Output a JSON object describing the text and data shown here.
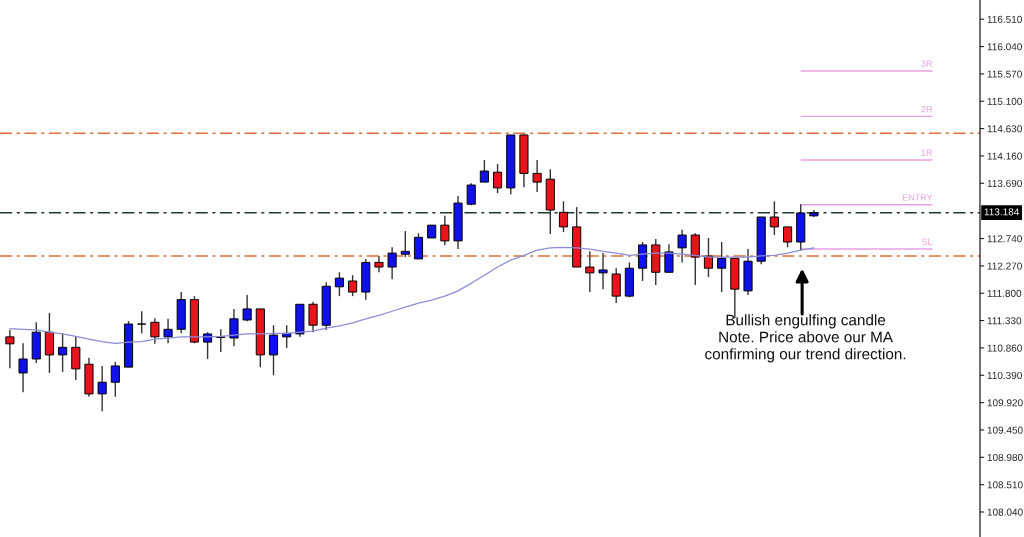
{
  "chart_data": {
    "type": "candlestick",
    "categories": [
      null,
      null,
      null,
      null,
      null,
      null,
      null,
      null,
      null,
      null,
      null,
      null,
      null,
      null,
      null,
      null,
      null,
      null,
      null,
      null,
      null,
      null,
      null,
      null,
      null,
      null,
      null,
      null,
      null,
      null,
      null,
      null,
      null,
      null,
      null,
      null,
      null,
      null,
      null,
      null,
      null,
      null,
      null,
      null,
      null,
      null,
      null,
      null,
      null,
      null,
      null,
      null,
      null,
      null,
      null,
      null,
      null,
      null,
      null,
      null,
      null,
      null
    ],
    "ohlc": [
      [
        111.05,
        111.17,
        110.51,
        110.93
      ],
      [
        110.43,
        110.94,
        110.1,
        110.67
      ],
      [
        110.67,
        111.3,
        110.6,
        111.13
      ],
      [
        111.13,
        111.46,
        110.43,
        110.74
      ],
      [
        110.74,
        111.11,
        110.45,
        110.87
      ],
      [
        110.87,
        111.05,
        110.31,
        110.5
      ],
      [
        110.58,
        110.69,
        110.02,
        110.07
      ],
      [
        110.07,
        110.55,
        109.77,
        110.27
      ],
      [
        110.27,
        110.62,
        110.02,
        110.55
      ],
      [
        110.53,
        111.32,
        110.53,
        111.27
      ],
      [
        111.27,
        111.49,
        111.11,
        111.27
      ],
      [
        111.3,
        111.37,
        110.93,
        111.05
      ],
      [
        111.05,
        111.36,
        110.94,
        111.18
      ],
      [
        111.18,
        111.82,
        111.11,
        111.69
      ],
      [
        111.69,
        111.75,
        110.94,
        110.96
      ],
      [
        110.96,
        111.13,
        110.67,
        111.1
      ],
      [
        111.05,
        111.18,
        110.79,
        111.04
      ],
      [
        111.03,
        111.53,
        110.89,
        111.36
      ],
      [
        111.34,
        111.77,
        111.32,
        111.53
      ],
      [
        111.53,
        111.53,
        110.53,
        110.74
      ],
      [
        110.74,
        111.25,
        110.39,
        111.08
      ],
      [
        111.05,
        111.25,
        110.86,
        111.11
      ],
      [
        111.1,
        111.61,
        111.05,
        111.61
      ],
      [
        111.61,
        111.65,
        111.13,
        111.25
      ],
      [
        111.25,
        111.99,
        111.17,
        111.92
      ],
      [
        111.91,
        112.16,
        111.75,
        112.06
      ],
      [
        112.01,
        112.11,
        111.75,
        111.82
      ],
      [
        111.82,
        112.39,
        111.69,
        112.33
      ],
      [
        112.33,
        112.44,
        112.16,
        112.25
      ],
      [
        112.25,
        112.59,
        112.04,
        112.49
      ],
      [
        112.47,
        112.87,
        112.42,
        112.52
      ],
      [
        112.39,
        112.83,
        112.39,
        112.76
      ],
      [
        112.75,
        112.97,
        112.75,
        112.97
      ],
      [
        112.97,
        113.13,
        112.63,
        112.7
      ],
      [
        112.7,
        113.47,
        112.56,
        113.35
      ],
      [
        113.33,
        113.69,
        113.31,
        113.66
      ],
      [
        113.71,
        114.09,
        113.71,
        113.9
      ],
      [
        113.88,
        114.02,
        113.52,
        113.61
      ],
      [
        113.61,
        114.52,
        113.5,
        114.52
      ],
      [
        114.52,
        114.53,
        113.62,
        113.86
      ],
      [
        113.86,
        114.09,
        113.54,
        113.71
      ],
      [
        113.76,
        113.93,
        112.82,
        113.23
      ],
      [
        113.19,
        113.38,
        112.85,
        112.94
      ],
      [
        112.94,
        113.28,
        112.25,
        112.25
      ],
      [
        112.25,
        112.52,
        111.82,
        112.15
      ],
      [
        112.15,
        112.49,
        111.87,
        112.2
      ],
      [
        112.13,
        112.23,
        111.63,
        111.75
      ],
      [
        111.75,
        112.33,
        111.73,
        112.23
      ],
      [
        112.23,
        112.68,
        112.01,
        112.63
      ],
      [
        112.63,
        112.73,
        111.94,
        112.16
      ],
      [
        112.16,
        112.64,
        112.15,
        112.51
      ],
      [
        112.58,
        112.89,
        112.33,
        112.8
      ],
      [
        112.8,
        112.83,
        111.94,
        112.42
      ],
      [
        112.44,
        112.75,
        112.08,
        112.23
      ],
      [
        112.23,
        112.68,
        111.82,
        112.4
      ],
      [
        112.4,
        112.4,
        111.37,
        111.87
      ],
      [
        111.84,
        112.56,
        111.77,
        112.35
      ],
      [
        112.35,
        113.11,
        112.3,
        113.11
      ],
      [
        113.11,
        113.38,
        112.8,
        112.94
      ],
      [
        112.94,
        112.94,
        112.59,
        112.68
      ],
      [
        112.68,
        113.33,
        112.54,
        113.18
      ],
      [
        113.13,
        113.23,
        113.11,
        113.18
      ]
    ],
    "colors": [
      "#e8141c",
      "#1010e8",
      "#1010e8",
      "#e8141c",
      "#1010e8",
      "#e8141c",
      "#e8141c",
      "#1010e8",
      "#1010e8",
      "#1010e8",
      "#000000",
      "#e8141c",
      "#1010e8",
      "#1010e8",
      "#e8141c",
      "#1010e8",
      "#e8141c",
      "#1010e8",
      "#1010e8",
      "#e8141c",
      "#1010e8",
      "#1010e8",
      "#1010e8",
      "#e8141c",
      "#1010e8",
      "#1010e8",
      "#e8141c",
      "#1010e8",
      "#e8141c",
      "#1010e8",
      "#1010e8",
      "#1010e8",
      "#1010e8",
      "#e8141c",
      "#1010e8",
      "#1010e8",
      "#1010e8",
      "#e8141c",
      "#1010e8",
      "#e8141c",
      "#e8141c",
      "#e8141c",
      "#e8141c",
      "#e8141c",
      "#e8141c",
      "#1010e8",
      "#e8141c",
      "#1010e8",
      "#1010e8",
      "#e8141c",
      "#1010e8",
      "#1010e8",
      "#e8141c",
      "#e8141c",
      "#1010e8",
      "#e8141c",
      "#1010e8",
      "#1010e8",
      "#e8141c",
      "#e8141c",
      "#1010e8",
      "#1010e8"
    ],
    "series": [
      {
        "type": "line",
        "color": "#8c8cd8",
        "values": [
          111.19,
          111.18,
          111.17,
          111.13,
          111.1,
          111.06,
          111.01,
          110.97,
          110.94,
          110.96,
          110.97,
          111.01,
          111.03,
          111.05,
          111.05,
          111.05,
          111.06,
          111.08,
          111.1,
          111.1,
          111.11,
          111.11,
          111.13,
          111.15,
          111.2,
          111.24,
          111.29,
          111.36,
          111.42,
          111.49,
          111.56,
          111.63,
          111.68,
          111.75,
          111.84,
          111.97,
          112.11,
          112.25,
          112.37,
          112.45,
          112.54,
          112.58,
          112.59,
          112.58,
          112.56,
          112.52,
          112.49,
          112.45,
          112.47,
          112.49,
          112.49,
          112.47,
          112.45,
          112.42,
          112.42,
          112.42,
          112.42,
          112.44,
          112.45,
          112.49,
          112.54,
          112.58
        ]
      }
    ],
    "ylim": [
      107.61,
      116.84
    ],
    "yticks": [
      {
        "value": 116.51,
        "label": "116.510"
      },
      {
        "value": 116.04,
        "label": "116.040"
      },
      {
        "value": 115.57,
        "label": "115.570"
      },
      {
        "value": 115.1,
        "label": "115.100"
      },
      {
        "value": 114.63,
        "label": "114.630"
      },
      {
        "value": 114.16,
        "label": "114.160"
      },
      {
        "value": 113.69,
        "label": "113.690"
      },
      {
        "value": 112.74,
        "label": "112.740"
      },
      {
        "value": 112.27,
        "label": "112.270"
      },
      {
        "value": 111.8,
        "label": "111.800"
      },
      {
        "value": 111.33,
        "label": "111.330"
      },
      {
        "value": 110.86,
        "label": "110.860"
      },
      {
        "value": 110.39,
        "label": "110.390"
      },
      {
        "value": 109.92,
        "label": "109.920"
      },
      {
        "value": 109.45,
        "label": "109.450"
      },
      {
        "value": 108.98,
        "label": "108.980"
      },
      {
        "value": 108.51,
        "label": "108.510"
      },
      {
        "value": 108.04,
        "label": "108.040"
      }
    ],
    "ref_lines": [
      {
        "axis": "y",
        "value": 114.55,
        "color": "#e0703c",
        "line_style": "dashed"
      },
      {
        "axis": "y",
        "value": 112.44,
        "color": "#e0703c",
        "line_style": "dashed"
      },
      {
        "axis": "y",
        "value": 113.184,
        "label": "113.184",
        "color": "#1e3a28",
        "line_style": "dashed"
      },
      {
        "axis": "y",
        "value": 115.62,
        "label": "3R",
        "color": "#e8a0e0",
        "line_style": "solid"
      },
      {
        "axis": "y",
        "value": 114.84,
        "label": "2R",
        "color": "#e8a0e0",
        "line_style": "solid"
      },
      {
        "axis": "y",
        "value": 114.09,
        "label": "1R",
        "color": "#e8a0e0",
        "line_style": "solid"
      },
      {
        "axis": "y",
        "value": 113.32,
        "label": "ENTRY",
        "color": "#e8a0e0",
        "line_style": "solid"
      },
      {
        "axis": "y",
        "value": 112.56,
        "label": "SL",
        "color": "#e8a0e0",
        "line_style": "solid"
      }
    ],
    "annotations": [
      "Bullish engulfing candle\nNote. Price above our MA\nconfirming our trend direction."
    ],
    "grid": false
  }
}
